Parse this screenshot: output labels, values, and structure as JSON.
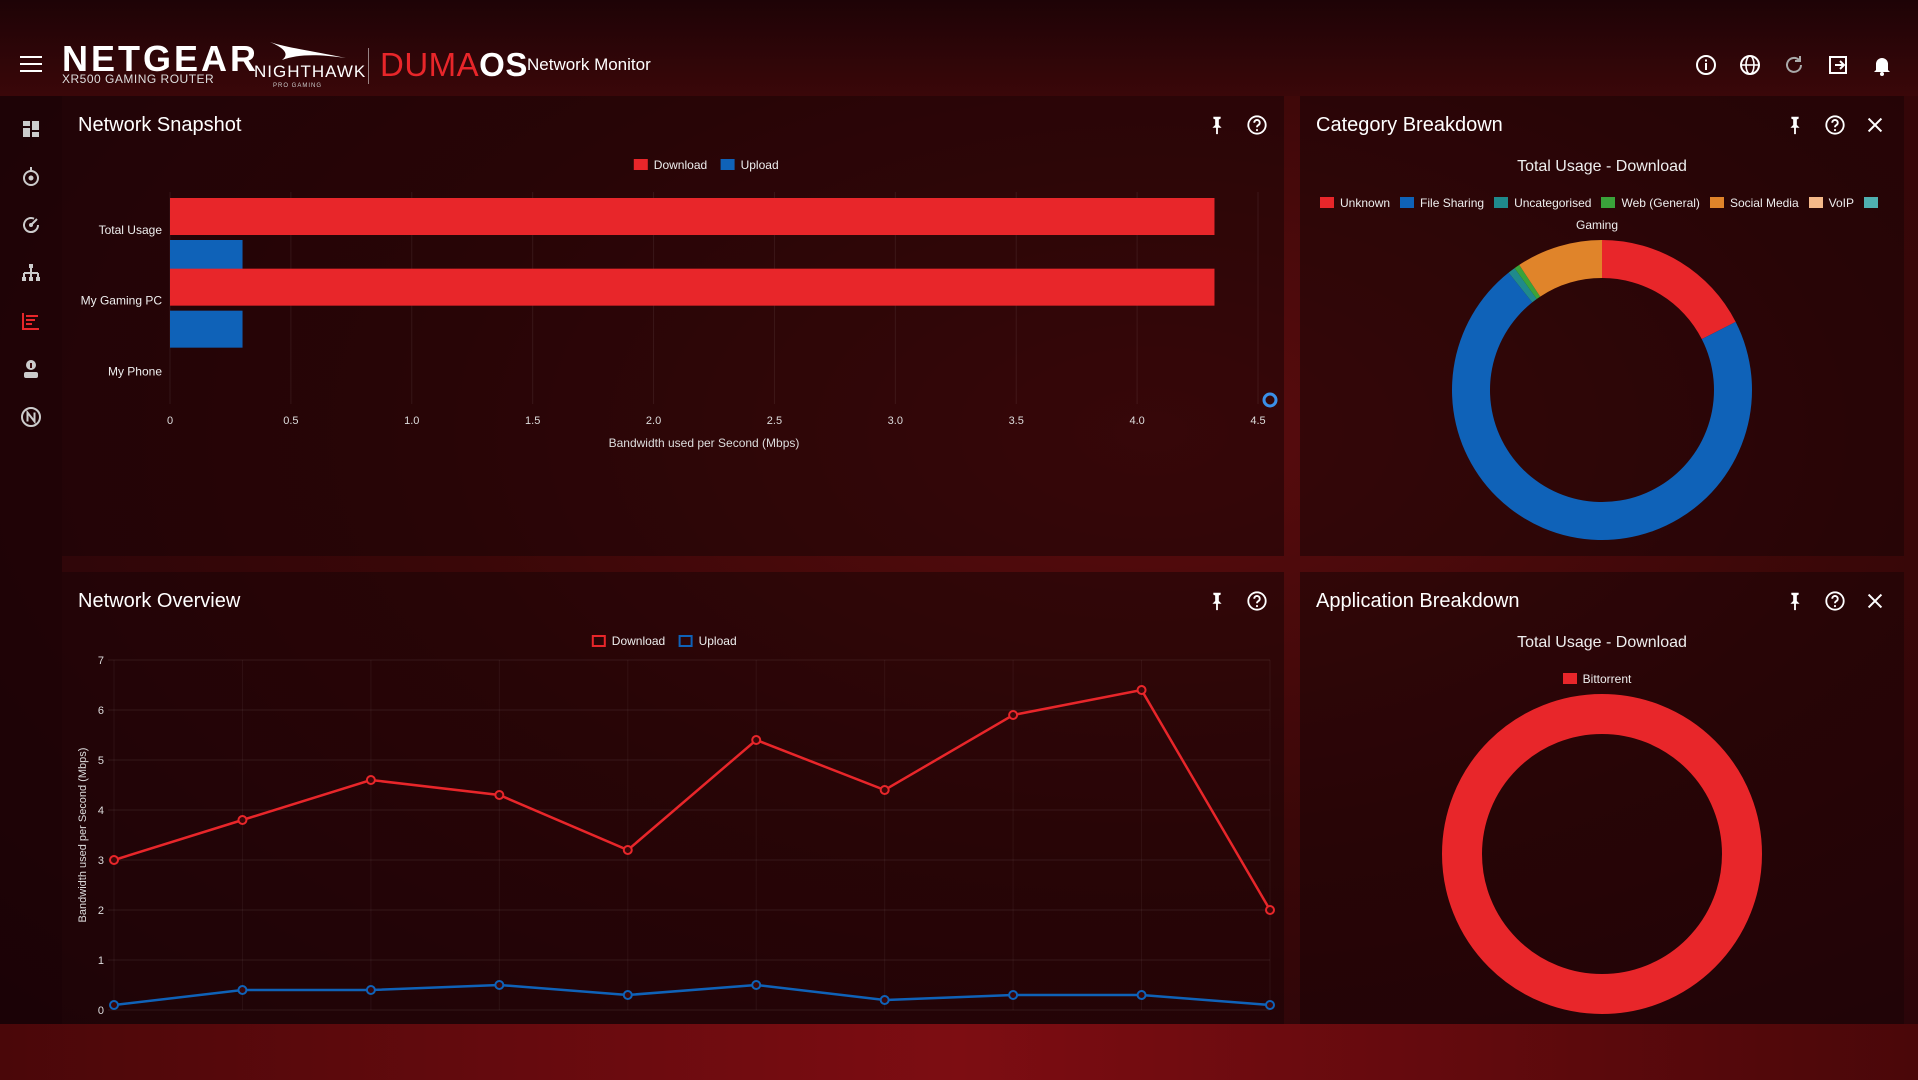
{
  "header": {
    "brand": "NETGEAR",
    "brand_sub": "XR500 GAMING ROUTER",
    "nighthawk": "NIGHTHAWK",
    "nighthawk_sub": "PRO GAMING",
    "os_prefix": "DUMA",
    "os_suffix": "OS",
    "page_name": "Network Monitor",
    "icons": [
      "info-icon",
      "globe-icon",
      "refresh-icon",
      "logout-icon",
      "bell-icon"
    ]
  },
  "sidebar": {
    "items": [
      {
        "icon": "dashboard-icon"
      },
      {
        "icon": "geo-filter-icon"
      },
      {
        "icon": "qos-icon"
      },
      {
        "icon": "device-manager-icon"
      },
      {
        "icon": "network-monitor-icon",
        "active": true
      },
      {
        "icon": "profiles-icon"
      },
      {
        "icon": "netgear-settings-icon"
      }
    ]
  },
  "colors": {
    "download": "#e8262a",
    "upload": "#0f62b8",
    "accent": "#e8262a"
  },
  "panels": {
    "snapshot": {
      "title": "Network Snapshot"
    },
    "category": {
      "title": "Category Breakdown",
      "subtitle": "Total Usage - Download"
    },
    "overview": {
      "title": "Network Overview"
    },
    "application": {
      "title": "Application Breakdown",
      "subtitle": "Total Usage - Download"
    }
  },
  "chart_data": [
    {
      "type": "bar",
      "orientation": "horizontal",
      "categories": [
        "Total Usage",
        "My Gaming PC",
        "My Phone"
      ],
      "series": [
        {
          "name": "Download",
          "color": "#e8262a",
          "values": [
            4.32,
            4.32,
            0
          ]
        },
        {
          "name": "Upload",
          "color": "#0f62b8",
          "values": [
            0.3,
            0.3,
            0
          ]
        }
      ],
      "xlabel": "Bandwidth used per Second (Mbps)",
      "ylabel": "",
      "xlim": [
        0,
        4.5
      ],
      "xticks": [
        "0",
        "0.5",
        "1.0",
        "1.5",
        "2.0",
        "2.5",
        "3.0",
        "3.5",
        "4.0",
        "4.5"
      ],
      "grid": true,
      "legend": "top-center"
    },
    {
      "type": "pie",
      "donut": true,
      "legend": "top-center",
      "labels": [
        "Unknown",
        "File Sharing",
        "Uncategorised",
        "Web (General)",
        "Social Media",
        "VoIP",
        "Gaming"
      ],
      "colors": [
        "#e8262a",
        "#0f62b8",
        "#1f8a8c",
        "#3aa33a",
        "#e0842a",
        "#f5b989",
        "#4fb0b0"
      ],
      "values": [
        17.5,
        71.8,
        0.8,
        0.6,
        9.3,
        0,
        0
      ]
    },
    {
      "type": "line",
      "x": [
        1,
        2,
        3,
        4,
        5,
        6,
        7,
        8,
        9,
        10
      ],
      "series": [
        {
          "name": "Download",
          "color": "#e8262a",
          "values": [
            3.0,
            3.8,
            4.6,
            4.3,
            3.2,
            5.4,
            4.4,
            5.9,
            6.4,
            2.0
          ]
        },
        {
          "name": "Upload",
          "color": "#0f62b8",
          "values": [
            0.1,
            0.4,
            0.4,
            0.5,
            0.3,
            0.5,
            0.2,
            0.3,
            0.3,
            0.1
          ]
        }
      ],
      "ylabel": "Bandwidth used per Second (Mbps)",
      "xlabel": "",
      "ylim": [
        0,
        7
      ],
      "yticks": [
        "0",
        "1",
        "2",
        "3",
        "4",
        "5",
        "6",
        "7"
      ],
      "grid": true,
      "legend": "top-center"
    },
    {
      "type": "pie",
      "donut": true,
      "legend": "top-center",
      "labels": [
        "Bittorrent"
      ],
      "colors": [
        "#e8262a"
      ],
      "values": [
        100
      ]
    }
  ]
}
